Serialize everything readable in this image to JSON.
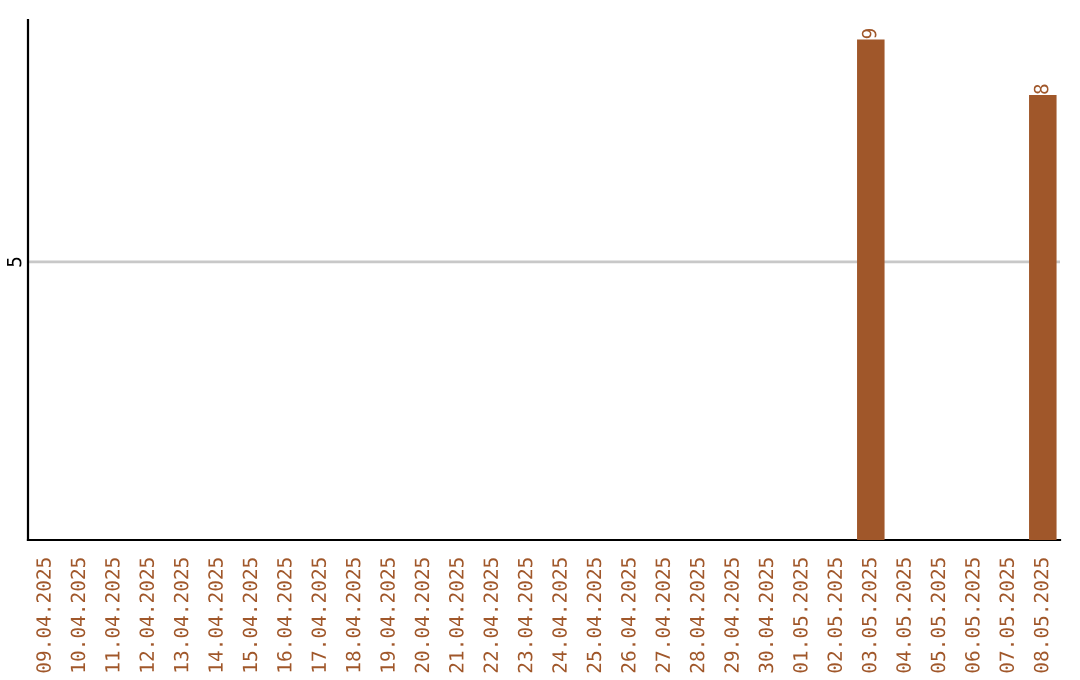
{
  "chart_data": {
    "type": "bar",
    "categories": [
      "09.04.2025",
      "10.04.2025",
      "11.04.2025",
      "12.04.2025",
      "13.04.2025",
      "14.04.2025",
      "15.04.2025",
      "16.04.2025",
      "17.04.2025",
      "18.04.2025",
      "19.04.2025",
      "20.04.2025",
      "21.04.2025",
      "22.04.2025",
      "23.04.2025",
      "24.04.2025",
      "25.04.2025",
      "26.04.2025",
      "27.04.2025",
      "28.04.2025",
      "29.04.2025",
      "30.04.2025",
      "01.05.2025",
      "02.05.2025",
      "03.05.2025",
      "04.05.2025",
      "05.05.2025",
      "06.05.2025",
      "07.05.2025",
      "08.05.2025"
    ],
    "values": [
      null,
      null,
      null,
      null,
      null,
      null,
      null,
      null,
      null,
      null,
      null,
      null,
      null,
      null,
      null,
      null,
      null,
      null,
      null,
      null,
      null,
      null,
      null,
      null,
      9,
      null,
      null,
      null,
      null,
      8
    ],
    "color": "#a0572a",
    "ylim": [
      0,
      9.35
    ],
    "yticks": [
      5
    ],
    "grid": "y",
    "data_labels": true
  }
}
